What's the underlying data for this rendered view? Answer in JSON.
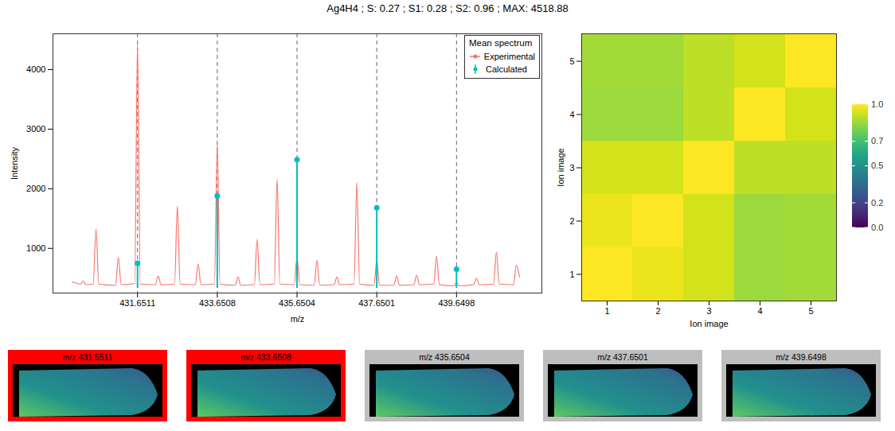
{
  "title": "Ag4H4 ; S: 0.27 ; S1: 0.28 ; S2: 0.96 ; MAX: 4518.88",
  "chart_data": [
    {
      "type": "line",
      "x_label": "m/z",
      "y_label": "Intensity",
      "xlim": [
        429.53,
        441.79
      ],
      "ylim": [
        250,
        4600
      ],
      "xticks": [
        431.6511,
        433.6508,
        435.6504,
        437.6501,
        439.6498
      ],
      "yticks": [
        1000,
        2000,
        3000,
        4000
      ],
      "legend": "top-right",
      "legend_title": "Mean spectrum",
      "series": [
        {
          "name": "Experimental",
          "color": "#F8766D",
          "type": "line",
          "x": [
            430.01,
            430.22,
            430.29,
            430.36,
            430.54,
            430.61,
            430.68,
            431.1,
            431.17,
            431.24,
            431.58,
            431.65,
            431.72,
            432.1,
            432.17,
            432.24,
            432.58,
            432.65,
            432.72,
            433.1,
            433.17,
            433.24,
            433.58,
            433.65,
            433.72,
            434.1,
            434.17,
            434.24,
            434.58,
            434.65,
            434.72,
            435.08,
            435.15,
            435.22,
            435.58,
            435.65,
            435.72,
            436.08,
            436.15,
            436.22,
            436.58,
            436.65,
            436.72,
            437.08,
            437.15,
            437.22,
            437.58,
            437.65,
            437.72,
            438.08,
            438.15,
            438.22,
            438.58,
            438.65,
            438.72,
            439.08,
            439.15,
            439.22,
            439.58,
            439.65,
            439.72,
            440.08,
            440.15,
            440.22,
            440.58,
            440.65,
            440.72,
            441.08,
            441.15,
            441.23
          ],
          "values": [
            440,
            400,
            450,
            390,
            400,
            1330,
            400,
            380,
            850,
            390,
            410,
            4420,
            400,
            390,
            540,
            390,
            400,
            1710,
            400,
            390,
            740,
            390,
            400,
            2750,
            400,
            380,
            520,
            380,
            390,
            1150,
            390,
            400,
            2160,
            400,
            390,
            850,
            390,
            380,
            800,
            380,
            390,
            520,
            390,
            400,
            2100,
            400,
            380,
            800,
            380,
            380,
            540,
            380,
            390,
            550,
            390,
            400,
            870,
            390,
            370,
            420,
            370,
            390,
            500,
            390,
            400,
            940,
            400,
            390,
            720,
            520
          ]
        },
        {
          "name": "Calculated",
          "color": "#00BFC4",
          "type": "stem",
          "marker": "circle",
          "x": [
            431.6511,
            433.6508,
            435.6504,
            437.6501,
            439.6498
          ],
          "values": [
            750,
            1880,
            2490,
            1680,
            650
          ],
          "baseline": 330
        }
      ]
    },
    {
      "type": "heatmap",
      "x_label": "Ion image",
      "y_label": "Ion image",
      "x": [
        1,
        2,
        3,
        4,
        5
      ],
      "y": [
        1,
        2,
        3,
        4,
        5
      ],
      "cells": [
        [
          1.0,
          0.97,
          0.93,
          0.85,
          0.86
        ],
        [
          0.97,
          1.0,
          0.93,
          0.85,
          0.86
        ],
        [
          0.93,
          0.93,
          1.0,
          0.9,
          0.9
        ],
        [
          0.85,
          0.85,
          0.9,
          1.0,
          0.93
        ],
        [
          0.86,
          0.86,
          0.9,
          0.93,
          1.0
        ]
      ],
      "colorbar": {
        "range": [
          0,
          1
        ],
        "ticks": [
          {
            "value": 0,
            "label": "0.0"
          },
          0.2,
          0.5,
          0.7,
          {
            "value": 1,
            "label": "1.0"
          }
        ]
      }
    }
  ],
  "ion_images": [
    {
      "label": "m/z 431.6511",
      "color": "#FF0000"
    },
    {
      "label": "m/z 433.6508",
      "color": "#FF0000"
    },
    {
      "label": "m/z 435.6504",
      "color": "#BEBEBE"
    },
    {
      "label": "m/z 437.6501",
      "color": "#BEBEBE"
    },
    {
      "label": "m/z 439.6498",
      "color": "#BEBEBE"
    }
  ]
}
